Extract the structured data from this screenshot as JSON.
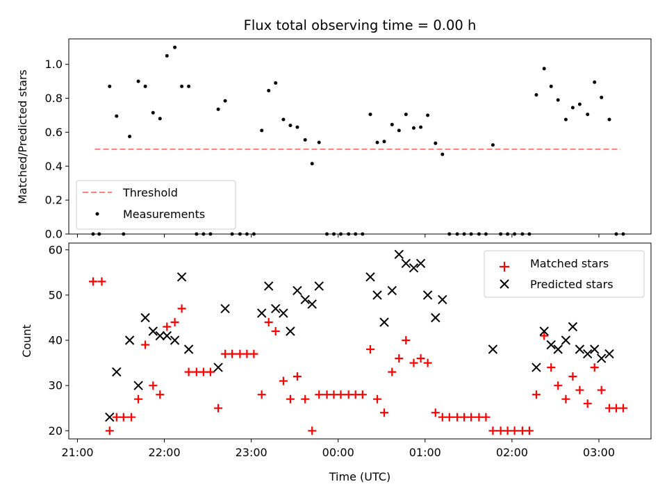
{
  "chart_data": [
    {
      "type": "scatter",
      "title": "Flux total observing time = 0.00 h",
      "ylabel": "Matched/Predicted stars",
      "xlabel": "",
      "ylim": [
        0,
        1.15
      ],
      "yticks": [
        0.0,
        0.2,
        0.4,
        0.6,
        0.8,
        1.0
      ],
      "ytick_labels": [
        "0.0",
        "0.2",
        "0.4",
        "0.6",
        "0.8",
        "1.0"
      ],
      "xlim": [
        20.9,
        27.6
      ],
      "xticks": [
        21,
        22,
        23,
        24,
        25,
        26,
        27
      ],
      "threshold": {
        "name": "Threshold",
        "value": 0.5,
        "x_range": [
          21.2,
          27.25
        ],
        "color": "#ff7f7f"
      },
      "measurements": {
        "name": "Measurements",
        "color": "#000000",
        "points": [
          [
            21.18,
            0.0
          ],
          [
            21.25,
            0.0
          ],
          [
            21.37,
            0.87
          ],
          [
            21.45,
            0.695
          ],
          [
            21.53,
            0.0
          ],
          [
            21.6,
            0.575
          ],
          [
            21.7,
            0.9
          ],
          [
            21.78,
            0.87
          ],
          [
            21.87,
            0.715
          ],
          [
            21.95,
            0.68
          ],
          [
            22.03,
            1.05
          ],
          [
            22.12,
            1.1
          ],
          [
            22.2,
            0.87
          ],
          [
            22.28,
            0.87
          ],
          [
            22.37,
            0.0
          ],
          [
            22.45,
            0.0
          ],
          [
            22.53,
            0.0
          ],
          [
            22.62,
            0.735
          ],
          [
            22.7,
            0.785
          ],
          [
            22.78,
            0.0
          ],
          [
            22.87,
            0.0
          ],
          [
            22.95,
            0.0
          ],
          [
            23.03,
            0.0
          ],
          [
            23.12,
            0.61
          ],
          [
            23.2,
            0.845
          ],
          [
            23.28,
            0.89
          ],
          [
            23.37,
            0.675
          ],
          [
            23.45,
            0.64
          ],
          [
            23.53,
            0.63
          ],
          [
            23.62,
            0.555
          ],
          [
            23.7,
            0.415
          ],
          [
            23.78,
            0.54
          ],
          [
            23.87,
            0.0
          ],
          [
            23.95,
            0.0
          ],
          [
            24.03,
            0.0
          ],
          [
            24.12,
            0.0
          ],
          [
            24.2,
            0.0
          ],
          [
            24.28,
            0.0
          ],
          [
            24.37,
            0.705
          ],
          [
            24.45,
            0.54
          ],
          [
            24.53,
            0.545
          ],
          [
            24.62,
            0.645
          ],
          [
            24.7,
            0.61
          ],
          [
            24.78,
            0.705
          ],
          [
            24.87,
            0.625
          ],
          [
            24.95,
            0.63
          ],
          [
            25.03,
            0.7
          ],
          [
            25.12,
            0.535
          ],
          [
            25.2,
            0.47
          ],
          [
            25.28,
            0.0
          ],
          [
            25.37,
            0.0
          ],
          [
            25.45,
            0.0
          ],
          [
            25.53,
            0.0
          ],
          [
            25.62,
            0.0
          ],
          [
            25.7,
            0.0
          ],
          [
            25.78,
            0.525
          ],
          [
            25.87,
            0.0
          ],
          [
            25.95,
            0.0
          ],
          [
            26.03,
            0.0
          ],
          [
            26.12,
            0.0
          ],
          [
            26.2,
            0.0
          ],
          [
            26.28,
            0.82
          ],
          [
            26.37,
            0.975
          ],
          [
            26.45,
            0.87
          ],
          [
            26.53,
            0.79
          ],
          [
            26.62,
            0.675
          ],
          [
            26.7,
            0.745
          ],
          [
            26.78,
            0.765
          ],
          [
            26.87,
            0.705
          ],
          [
            26.95,
            0.895
          ],
          [
            27.03,
            0.805
          ],
          [
            27.12,
            0.675
          ],
          [
            27.2,
            0.0
          ],
          [
            27.28,
            0.0
          ]
        ]
      },
      "legend": {
        "placement": "lower-left",
        "entries": [
          "Threshold",
          "Measurements"
        ]
      },
      "grid": false
    },
    {
      "type": "scatter",
      "title": "",
      "xlabel": "Time (UTC)",
      "ylabel": "Count",
      "ylim": [
        18.2,
        61.5
      ],
      "yticks": [
        20,
        30,
        40,
        50,
        60
      ],
      "ytick_labels": [
        "20",
        "30",
        "40",
        "50",
        "60"
      ],
      "xlim": [
        20.9,
        27.6
      ],
      "xticks": [
        21,
        22,
        23,
        24,
        25,
        26,
        27
      ],
      "xtick_labels": [
        "21:00",
        "22:00",
        "23:00",
        "00:00",
        "01:00",
        "02:00",
        "03:00"
      ],
      "series": [
        {
          "name": "Matched stars",
          "marker": "plus",
          "color": "#ff0000",
          "points": [
            [
              21.18,
              53
            ],
            [
              21.28,
              53
            ],
            [
              21.37,
              20
            ],
            [
              21.45,
              23
            ],
            [
              21.53,
              23
            ],
            [
              21.62,
              23
            ],
            [
              21.7,
              27
            ],
            [
              21.78,
              39
            ],
            [
              21.87,
              30
            ],
            [
              21.95,
              28
            ],
            [
              22.03,
              43
            ],
            [
              22.12,
              44
            ],
            [
              22.2,
              47
            ],
            [
              22.28,
              33
            ],
            [
              22.37,
              33
            ],
            [
              22.45,
              33
            ],
            [
              22.53,
              33
            ],
            [
              22.62,
              25
            ],
            [
              22.7,
              37
            ],
            [
              22.78,
              37
            ],
            [
              22.87,
              37
            ],
            [
              22.95,
              37
            ],
            [
              23.03,
              37
            ],
            [
              23.12,
              28
            ],
            [
              23.2,
              44
            ],
            [
              23.28,
              42
            ],
            [
              23.37,
              31
            ],
            [
              23.45,
              27
            ],
            [
              23.53,
              32
            ],
            [
              23.62,
              27
            ],
            [
              23.7,
              20
            ],
            [
              23.78,
              28
            ],
            [
              23.87,
              28
            ],
            [
              23.95,
              28
            ],
            [
              24.03,
              28
            ],
            [
              24.12,
              28
            ],
            [
              24.2,
              28
            ],
            [
              24.28,
              28
            ],
            [
              24.37,
              38
            ],
            [
              24.45,
              27
            ],
            [
              24.53,
              24
            ],
            [
              24.62,
              33
            ],
            [
              24.7,
              36
            ],
            [
              24.78,
              40
            ],
            [
              24.87,
              35
            ],
            [
              24.95,
              36
            ],
            [
              25.03,
              35
            ],
            [
              25.12,
              24
            ],
            [
              25.2,
              23
            ],
            [
              25.28,
              23
            ],
            [
              25.37,
              23
            ],
            [
              25.45,
              23
            ],
            [
              25.53,
              23
            ],
            [
              25.62,
              23
            ],
            [
              25.7,
              23
            ],
            [
              25.78,
              20
            ],
            [
              25.87,
              20
            ],
            [
              25.95,
              20
            ],
            [
              26.03,
              20
            ],
            [
              26.12,
              20
            ],
            [
              26.2,
              20
            ],
            [
              26.28,
              28
            ],
            [
              26.37,
              41
            ],
            [
              26.45,
              34
            ],
            [
              26.53,
              30
            ],
            [
              26.62,
              27
            ],
            [
              26.7,
              32
            ],
            [
              26.78,
              29
            ],
            [
              26.87,
              26
            ],
            [
              26.95,
              34
            ],
            [
              27.03,
              29
            ],
            [
              27.12,
              25
            ],
            [
              27.2,
              25
            ],
            [
              27.28,
              25
            ]
          ]
        },
        {
          "name": "Predicted stars",
          "marker": "x",
          "color": "#000000",
          "points": [
            [
              21.37,
              23
            ],
            [
              21.45,
              33
            ],
            [
              21.6,
              40
            ],
            [
              21.7,
              30
            ],
            [
              21.78,
              45
            ],
            [
              21.87,
              42
            ],
            [
              21.95,
              41
            ],
            [
              22.03,
              41
            ],
            [
              22.12,
              40
            ],
            [
              22.2,
              54
            ],
            [
              22.28,
              38
            ],
            [
              22.62,
              34
            ],
            [
              22.7,
              47
            ],
            [
              23.12,
              46
            ],
            [
              23.2,
              52
            ],
            [
              23.28,
              47
            ],
            [
              23.37,
              46
            ],
            [
              23.45,
              42
            ],
            [
              23.53,
              51
            ],
            [
              23.62,
              49
            ],
            [
              23.7,
              48
            ],
            [
              23.78,
              52
            ],
            [
              24.37,
              54
            ],
            [
              24.45,
              50
            ],
            [
              24.53,
              44
            ],
            [
              24.62,
              51
            ],
            [
              24.7,
              59
            ],
            [
              24.78,
              57
            ],
            [
              24.87,
              56
            ],
            [
              24.95,
              57
            ],
            [
              25.03,
              50
            ],
            [
              25.12,
              45
            ],
            [
              25.2,
              49
            ],
            [
              25.78,
              38
            ],
            [
              26.28,
              34
            ],
            [
              26.37,
              42
            ],
            [
              26.45,
              39
            ],
            [
              26.53,
              38
            ],
            [
              26.62,
              40
            ],
            [
              26.7,
              43
            ],
            [
              26.78,
              38
            ],
            [
              26.87,
              37
            ],
            [
              26.95,
              38
            ],
            [
              27.03,
              36
            ],
            [
              27.12,
              37
            ]
          ]
        }
      ],
      "legend": {
        "placement": "top-right",
        "entries": [
          "Matched stars",
          "Predicted stars"
        ]
      },
      "grid": false
    }
  ]
}
